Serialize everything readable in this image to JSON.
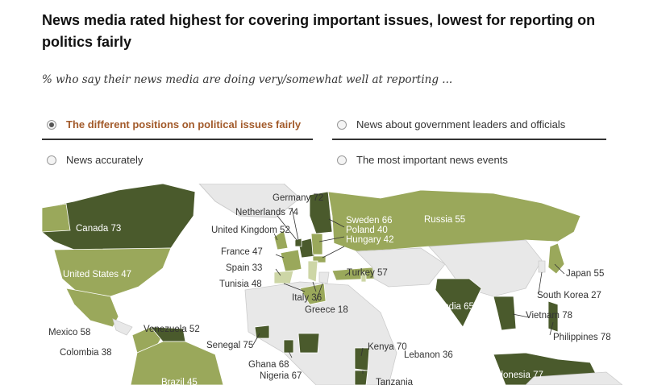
{
  "title": "News media rated highest for covering important issues, lowest for reporting on politics fairly",
  "subtitle": "% who say their news media are doing very/somewhat well at reporting ...",
  "options": [
    {
      "label": "The different positions on political issues fairly",
      "selected": true
    },
    {
      "label": "News about government leaders and officials",
      "selected": false
    },
    {
      "label": "News accurately",
      "selected": false
    },
    {
      "label": "The most important news events",
      "selected": false
    }
  ],
  "countries": [
    {
      "name": "Canada",
      "value": 73
    },
    {
      "name": "United States",
      "value": 47
    },
    {
      "name": "Mexico",
      "value": 58
    },
    {
      "name": "Colombia",
      "value": 38
    },
    {
      "name": "Venezuela",
      "value": 52
    },
    {
      "name": "Brazil",
      "value": 45
    },
    {
      "name": "Germany",
      "value": 72
    },
    {
      "name": "Netherlands",
      "value": 74
    },
    {
      "name": "United Kingdom",
      "value": 52
    },
    {
      "name": "France",
      "value": 47
    },
    {
      "name": "Spain",
      "value": 33
    },
    {
      "name": "Tunisia",
      "value": 48
    },
    {
      "name": "Italy",
      "value": 36
    },
    {
      "name": "Greece",
      "value": 18
    },
    {
      "name": "Sweden",
      "value": 66
    },
    {
      "name": "Poland",
      "value": 40
    },
    {
      "name": "Hungary",
      "value": 42
    },
    {
      "name": "Turkey",
      "value": 57
    },
    {
      "name": "Russia",
      "value": 55
    },
    {
      "name": "Japan",
      "value": 55
    },
    {
      "name": "South Korea",
      "value": 27
    },
    {
      "name": "India",
      "value": 65
    },
    {
      "name": "Vietnam",
      "value": 78
    },
    {
      "name": "Philippines",
      "value": 78
    },
    {
      "name": "Indonesia",
      "value": 77
    },
    {
      "name": "Senegal",
      "value": 75
    },
    {
      "name": "Ghana",
      "value": 68
    },
    {
      "name": "Nigeria",
      "value": 67
    },
    {
      "name": "Kenya",
      "value": 70
    },
    {
      "name": "Lebanon",
      "value": 36
    },
    {
      "name": "Tanzania",
      "value": null
    }
  ],
  "colors": {
    "dark": "#4a5a2c",
    "mid": "#9aa85b",
    "light": "#cdd6a6",
    "nodata": "#e8e8e8",
    "accent": "#a25a2a"
  }
}
